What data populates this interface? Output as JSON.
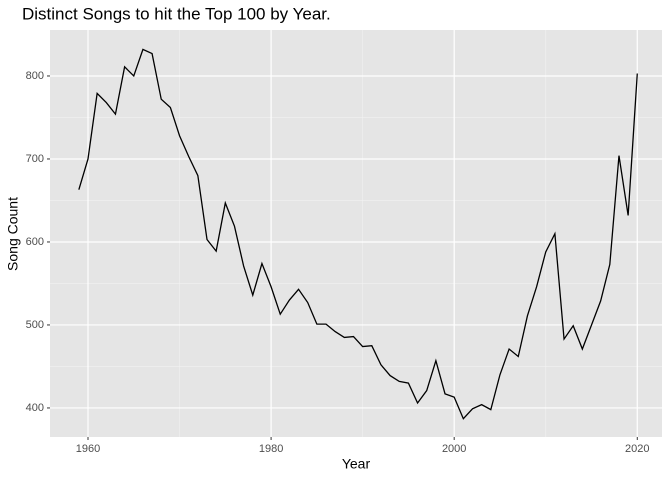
{
  "chart_data": {
    "type": "line",
    "title": "Distinct Songs to hit the Top 100 by Year.",
    "x_label": "Year",
    "y_label": "Song Count",
    "x": [
      1959,
      1960,
      1961,
      1962,
      1963,
      1964,
      1965,
      1966,
      1967,
      1968,
      1969,
      1970,
      1971,
      1972,
      1973,
      1974,
      1975,
      1976,
      1977,
      1978,
      1979,
      1980,
      1981,
      1982,
      1983,
      1984,
      1985,
      1986,
      1987,
      1988,
      1989,
      1990,
      1991,
      1992,
      1993,
      1994,
      1995,
      1996,
      1997,
      1998,
      1999,
      2000,
      2001,
      2002,
      2003,
      2004,
      2005,
      2006,
      2007,
      2008,
      2009,
      2010,
      2011,
      2012,
      2013,
      2014,
      2015,
      2016,
      2017,
      2018,
      2019,
      2020
    ],
    "series": [
      {
        "color": "#000000",
        "values": [
          663,
          700,
          779,
          768,
          754,
          811,
          800,
          832,
          827,
          772,
          762,
          728,
          703,
          680,
          603,
          589,
          647,
          619,
          571,
          536,
          574,
          546,
          513,
          530,
          543,
          527,
          501,
          501,
          492,
          485,
          486,
          474,
          475,
          452,
          439,
          432,
          430,
          406,
          421,
          457,
          417,
          413,
          387,
          399,
          404,
          398,
          440,
          471,
          462,
          511,
          546,
          588,
          610,
          483,
          499,
          471,
          500,
          529,
          573,
          704,
          632,
          803
        ]
      }
    ],
    "xlim": [
      1955.85,
      2022.7
    ],
    "ylim": [
      365,
      855.4
    ],
    "xticks": [
      1960,
      1980,
      2000,
      2020
    ],
    "yticks": [
      400,
      500,
      600,
      700,
      800
    ],
    "grid": true,
    "panel_color": "#e5e5e5"
  }
}
